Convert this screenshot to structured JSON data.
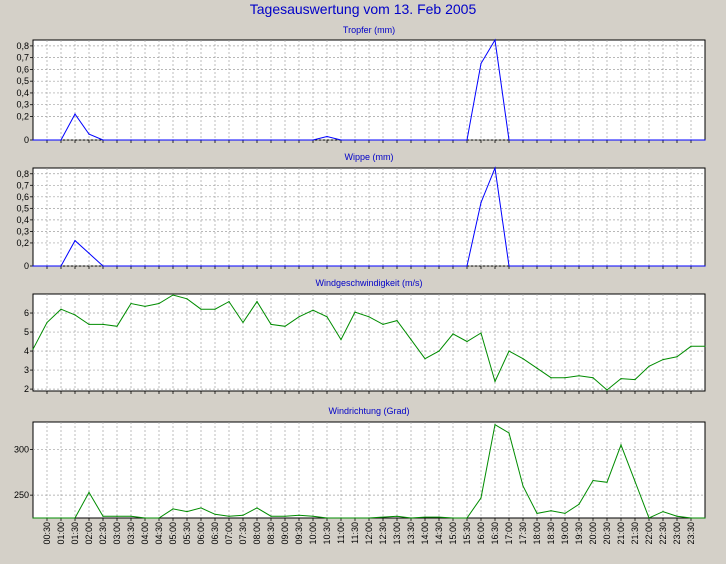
{
  "window": {
    "title": "Tagesauswertung vom 13. Feb 2005"
  },
  "colors": {
    "background": "#d4d0c8",
    "plot_background": "#ffffff",
    "title": "#0000c8",
    "rain_series": "#0000ff",
    "wind_series": "#008c00",
    "grid": "#a0a0a0"
  },
  "time_axis": {
    "ticks": [
      "00:30",
      "01:00",
      "01:30",
      "02:00",
      "02:30",
      "03:00",
      "03:30",
      "04:00",
      "04:30",
      "05:00",
      "05:30",
      "06:00",
      "06:30",
      "07:00",
      "07:30",
      "08:00",
      "08:30",
      "09:00",
      "09:30",
      "10:00",
      "10:30",
      "11:00",
      "11:30",
      "12:00",
      "12:30",
      "13:00",
      "13:30",
      "14:00",
      "14:30",
      "15:00",
      "15:30",
      "16:00",
      "16:30",
      "17:00",
      "17:30",
      "18:00",
      "18:30",
      "19:00",
      "19:30",
      "20:00",
      "20:30",
      "21:00",
      "21:30",
      "22:00",
      "22:30",
      "23:00",
      "23:30"
    ]
  },
  "chart_data": [
    {
      "type": "line",
      "title": "Tropfer (mm)",
      "color": "blue",
      "ylim": [
        0,
        0.85
      ],
      "yticks": [
        0,
        0.2,
        0.3,
        0.4,
        0.5,
        0.6,
        0.7,
        0.8
      ],
      "ytick_labels": [
        "0",
        "0,2",
        "0,3",
        "0,4",
        "0,5",
        "0,6",
        "0,7",
        "0,8"
      ],
      "x": [
        "00:00",
        "00:30",
        "01:00",
        "01:30",
        "02:00",
        "02:30",
        "03:00",
        "03:30",
        "04:00",
        "04:30",
        "05:00",
        "05:30",
        "06:00",
        "06:30",
        "07:00",
        "07:30",
        "08:00",
        "08:30",
        "09:00",
        "09:30",
        "10:00",
        "10:30",
        "11:00",
        "11:30",
        "12:00",
        "12:30",
        "13:00",
        "13:30",
        "14:00",
        "14:30",
        "15:00",
        "15:30",
        "16:00",
        "16:30",
        "17:00",
        "17:30",
        "18:00",
        "18:30",
        "19:00",
        "19:30",
        "20:00",
        "20:30",
        "21:00",
        "21:30",
        "22:00",
        "22:30",
        "23:00",
        "23:30",
        "24:00"
      ],
      "values": [
        0,
        0,
        0,
        0.22,
        0.05,
        0,
        0,
        0,
        0,
        0,
        0,
        0,
        0,
        0,
        0,
        0,
        0,
        0,
        0,
        0,
        0,
        0.03,
        0,
        0,
        0,
        0,
        0,
        0,
        0,
        0,
        0,
        0,
        0.65,
        0.85,
        0,
        0,
        0,
        0,
        0,
        0,
        0,
        0,
        0,
        0,
        0,
        0,
        0,
        0,
        0
      ]
    },
    {
      "type": "line",
      "title": "Wippe (mm)",
      "color": "blue",
      "ylim": [
        0,
        0.85
      ],
      "yticks": [
        0,
        0.2,
        0.3,
        0.4,
        0.5,
        0.6,
        0.7,
        0.8
      ],
      "ytick_labels": [
        "0",
        "0,2",
        "0,3",
        "0,4",
        "0,5",
        "0,6",
        "0,7",
        "0,8"
      ],
      "x": [
        "00:00",
        "00:30",
        "01:00",
        "01:30",
        "02:00",
        "02:30",
        "03:00",
        "03:30",
        "04:00",
        "04:30",
        "05:00",
        "05:30",
        "06:00",
        "06:30",
        "07:00",
        "07:30",
        "08:00",
        "08:30",
        "09:00",
        "09:30",
        "10:00",
        "10:30",
        "11:00",
        "11:30",
        "12:00",
        "12:30",
        "13:00",
        "13:30",
        "14:00",
        "14:30",
        "15:00",
        "15:30",
        "16:00",
        "16:30",
        "17:00",
        "17:30",
        "18:00",
        "18:30",
        "19:00",
        "19:30",
        "20:00",
        "20:30",
        "21:00",
        "21:30",
        "22:00",
        "22:30",
        "23:00",
        "23:30",
        "24:00"
      ],
      "values": [
        0,
        0,
        0,
        0.22,
        0.11,
        0,
        0,
        0,
        0,
        0,
        0,
        0,
        0,
        0,
        0,
        0,
        0,
        0,
        0,
        0,
        0,
        0,
        0,
        0,
        0,
        0,
        0,
        0,
        0,
        0,
        0,
        0,
        0.55,
        0.85,
        0,
        0,
        0,
        0,
        0,
        0,
        0,
        0,
        0,
        0,
        0,
        0,
        0,
        0,
        0
      ]
    },
    {
      "type": "line",
      "title": "Windgeschwindigkeit (m/s)",
      "color": "green",
      "ylim": [
        1.9,
        7
      ],
      "yticks": [
        2,
        3,
        4,
        5,
        6
      ],
      "ytick_labels": [
        "2",
        "3",
        "4",
        "5",
        "6"
      ],
      "x": [
        "00:00",
        "00:30",
        "01:00",
        "01:30",
        "02:00",
        "02:30",
        "03:00",
        "03:30",
        "04:00",
        "04:30",
        "05:00",
        "05:30",
        "06:00",
        "06:30",
        "07:00",
        "07:30",
        "08:00",
        "08:30",
        "09:00",
        "09:30",
        "10:00",
        "10:30",
        "11:00",
        "11:30",
        "12:00",
        "12:30",
        "13:00",
        "13:30",
        "14:00",
        "14:30",
        "15:00",
        "15:30",
        "16:00",
        "16:30",
        "17:00",
        "17:30",
        "18:00",
        "18:30",
        "19:00",
        "19:30",
        "20:00",
        "20:30",
        "21:00",
        "21:30",
        "22:00",
        "22:30",
        "23:00",
        "23:30",
        "24:00"
      ],
      "values": [
        4.1,
        5.5,
        6.2,
        5.9,
        5.4,
        5.4,
        5.3,
        6.5,
        6.35,
        6.5,
        6.95,
        6.75,
        6.2,
        6.2,
        6.6,
        5.5,
        6.6,
        5.4,
        5.3,
        5.8,
        6.15,
        5.8,
        4.6,
        6.05,
        5.8,
        5.4,
        5.6,
        4.6,
        3.6,
        4.0,
        4.9,
        4.5,
        4.95,
        2.4,
        4.0,
        3.6,
        3.1,
        2.6,
        2.6,
        2.7,
        2.6,
        1.95,
        2.55,
        2.5,
        3.2,
        3.55,
        3.7,
        4.25,
        4.25
      ]
    },
    {
      "type": "line",
      "title": "Windrichtung (Grad)",
      "color": "green",
      "ylim": [
        225,
        330
      ],
      "yticks": [
        250,
        300
      ],
      "ytick_labels": [
        "250",
        "300"
      ],
      "x": [
        "00:00",
        "00:30",
        "01:00",
        "01:30",
        "02:00",
        "02:30",
        "03:00",
        "03:30",
        "04:00",
        "04:30",
        "05:00",
        "05:30",
        "06:00",
        "06:30",
        "07:00",
        "07:30",
        "08:00",
        "08:30",
        "09:00",
        "09:30",
        "10:00",
        "10:30",
        "11:00",
        "11:30",
        "12:00",
        "12:30",
        "13:00",
        "13:30",
        "14:00",
        "14:30",
        "15:00",
        "15:30",
        "16:00",
        "16:30",
        "17:00",
        "17:30",
        "18:00",
        "18:30",
        "19:00",
        "19:30",
        "20:00",
        "20:30",
        "21:00",
        "21:30",
        "22:00",
        "22:30",
        "23:00",
        "23:30",
        "24:00"
      ],
      "values": [
        225,
        225,
        225,
        225,
        253,
        227,
        227,
        227,
        225,
        225,
        235,
        232,
        236,
        229,
        227,
        228,
        236,
        227,
        227,
        228,
        227,
        225,
        225,
        225,
        225,
        226,
        227,
        225,
        226,
        226,
        225,
        225,
        247,
        327,
        318,
        260,
        230,
        233,
        230,
        240,
        266,
        264,
        305,
        265,
        225,
        232,
        227,
        225,
        225
      ]
    }
  ]
}
